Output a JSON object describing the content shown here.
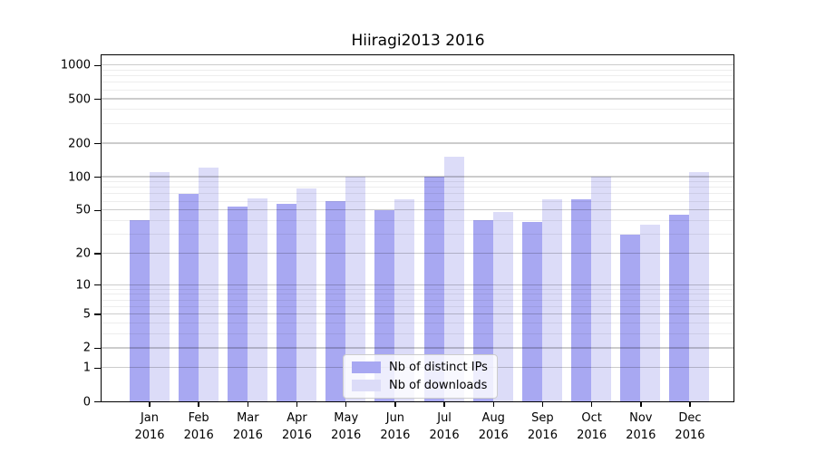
{
  "title": "Hiiragi2013 2016",
  "chart_data": {
    "type": "bar",
    "title": "Hiiragi2013 2016",
    "x_months": [
      "Jan",
      "Feb",
      "Mar",
      "Apr",
      "May",
      "Jun",
      "Jul",
      "Aug",
      "Sep",
      "Oct",
      "Nov",
      "Dec"
    ],
    "x_year": "2016",
    "series": [
      {
        "name": "Nb of distinct IPs",
        "color": "#a8a8f2",
        "values": [
          40,
          70,
          54,
          57,
          60,
          50,
          100,
          40,
          39,
          63,
          30,
          45
        ]
      },
      {
        "name": "Nb of downloads",
        "color": "#dcdcf8",
        "values": [
          110,
          120,
          64,
          78,
          100,
          62,
          150,
          48,
          62,
          100,
          37,
          110
        ]
      }
    ],
    "y_ticks": [
      1000,
      500,
      200,
      100,
      50,
      20,
      10,
      5,
      2,
      1,
      0
    ],
    "y_scale": "log10(1+value)",
    "ylim": [
      0,
      1200
    ],
    "grid": "on",
    "legend_position": "lower center"
  },
  "colors": {
    "background": "#ffffff",
    "spine": "#000000",
    "major_grid": "rgba(0,0,0,0.20)",
    "minor_grid": "rgba(0,0,0,0.07)",
    "bar_distinct_ips": "#a8a8f2",
    "bar_downloads": "#dcdcf8",
    "legend_border": "#cccccc"
  }
}
